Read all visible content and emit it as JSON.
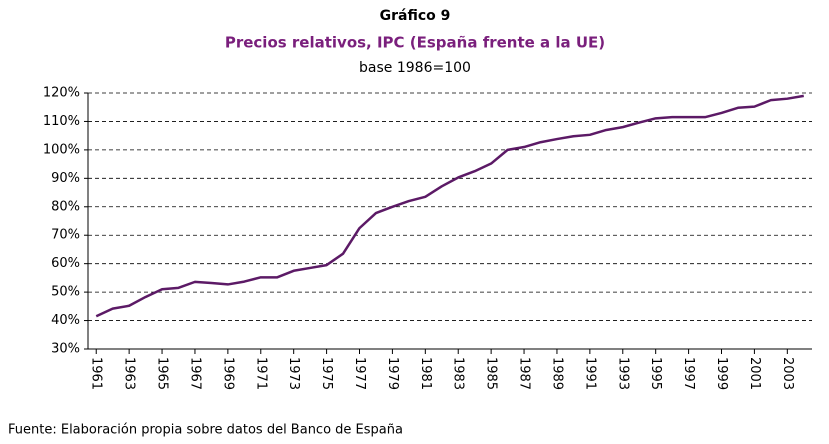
{
  "chart_data": {
    "type": "line",
    "title": "Gráfico 9",
    "subtitle": "Precios relativos, IPC (España frente a la UE)",
    "note": "base 1986=100",
    "source": "Fuente: Elaboración propia sobre datos del Banco de España",
    "x": [
      1961,
      1962,
      1963,
      1964,
      1965,
      1966,
      1967,
      1968,
      1969,
      1970,
      1971,
      1972,
      1973,
      1974,
      1975,
      1976,
      1977,
      1978,
      1979,
      1980,
      1981,
      1982,
      1983,
      1984,
      1985,
      1986,
      1987,
      1988,
      1989,
      1990,
      1991,
      1992,
      1993,
      1994,
      1995,
      1996,
      1997,
      1998,
      1999,
      2000,
      2001,
      2002,
      2003,
      2004
    ],
    "values": [
      41.5,
      44.2,
      45.2,
      48.3,
      51,
      51.5,
      53.6,
      53.2,
      52.7,
      53.7,
      55.2,
      55.2,
      57.5,
      58.5,
      59.5,
      63.5,
      72.5,
      77.8,
      80,
      82,
      83.5,
      87.2,
      90.3,
      92.5,
      95.2,
      100,
      101,
      102.7,
      103.8,
      104.8,
      105.3,
      107,
      108,
      109.6,
      111.1,
      111.5,
      111.5,
      111.5,
      113,
      114.8,
      115.2,
      117.5,
      118,
      119
    ],
    "color": "#5c1a66",
    "xlim": [
      1960.5,
      2004.5
    ],
    "xticks": [
      1961,
      1963,
      1965,
      1967,
      1969,
      1971,
      1973,
      1975,
      1977,
      1979,
      1981,
      1983,
      1985,
      1987,
      1989,
      1991,
      1993,
      1995,
      1997,
      1999,
      2001,
      2003
    ],
    "ylim": [
      30,
      120
    ],
    "yticks": [
      {
        "value": 30,
        "label": "30%"
      },
      {
        "value": 40,
        "label": "40%"
      },
      {
        "value": 50,
        "label": "50%"
      },
      {
        "value": 60,
        "label": "60%"
      },
      {
        "value": 70,
        "label": "70%"
      },
      {
        "value": 80,
        "label": "80%"
      },
      {
        "value": 90,
        "label": "90%"
      },
      {
        "value": 100,
        "label": "100%"
      },
      {
        "value": 110,
        "label": "110%"
      },
      {
        "value": 120,
        "label": "120%"
      }
    ],
    "grid": true
  }
}
